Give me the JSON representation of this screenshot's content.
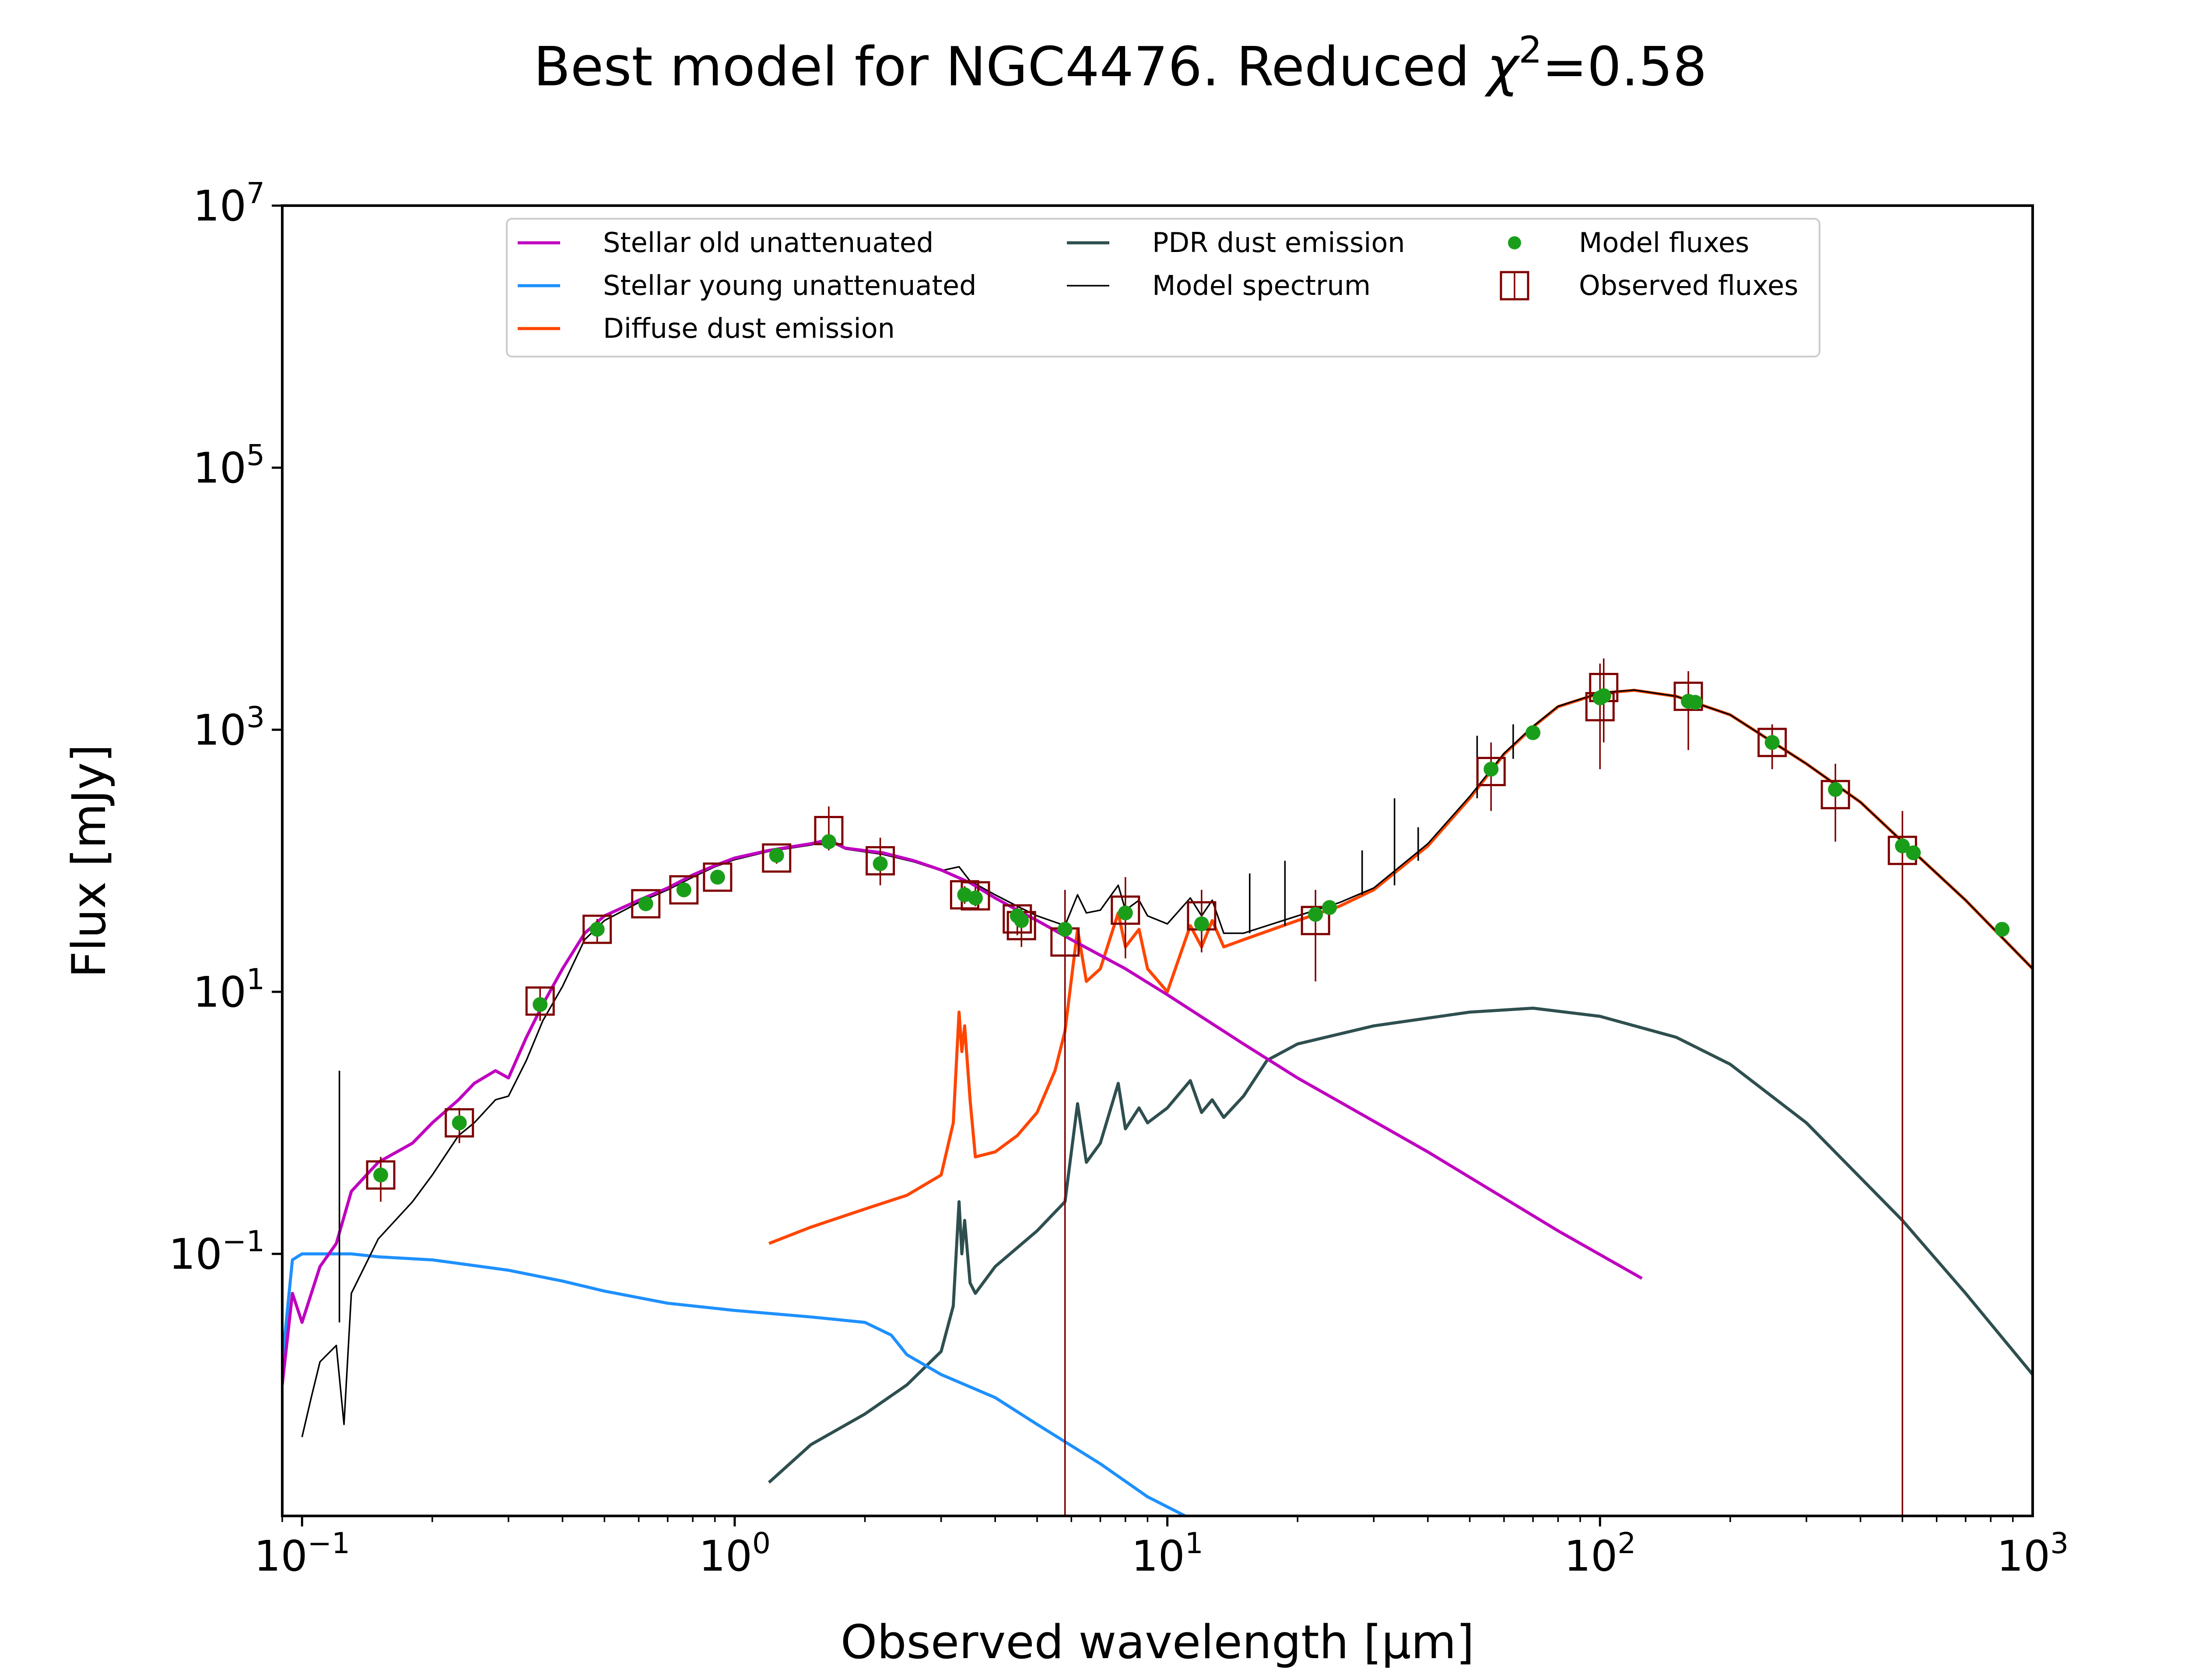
{
  "colors": {
    "stellar_old": "#bf00bf",
    "stellar_young": "#1e90ff",
    "diffuse_dust": "#ff4500",
    "pdr_dust": "#2f4f4f",
    "model_spectrum": "#000000",
    "model_fluxes": "#1a9e1a",
    "observed_fluxes": "#7f0000"
  },
  "chart_data": {
    "type": "line",
    "title_main": "Best model for NGC4476. Reduced ",
    "title_chi": "χ",
    "title_sup": "2",
    "title_tail": "=0.58",
    "xlabel": "Observed wavelength [μm]",
    "ylabel": "Flux [mJy]",
    "xscale": "log",
    "yscale": "log",
    "xlim": [
      0.09,
      1000
    ],
    "ylim": [
      0.001,
      10000000
    ],
    "grid": false,
    "legend_placement": "upper-center",
    "x_ticks": [
      {
        "value": 0.1,
        "base": "10",
        "exp": "−1"
      },
      {
        "value": 1,
        "base": "10",
        "exp": "0"
      },
      {
        "value": 10,
        "base": "10",
        "exp": "1"
      },
      {
        "value": 100,
        "base": "10",
        "exp": "2"
      },
      {
        "value": 1000,
        "base": "10",
        "exp": "3"
      }
    ],
    "y_ticks": [
      {
        "value": 0.1,
        "base": "10",
        "exp": "−1"
      },
      {
        "value": 10,
        "base": "10",
        "exp": "1"
      },
      {
        "value": 1000,
        "base": "10",
        "exp": "3"
      },
      {
        "value": 100000,
        "base": "10",
        "exp": "5"
      },
      {
        "value": 10000000,
        "base": "10",
        "exp": "7"
      }
    ],
    "series": [
      {
        "name": "Stellar old unattenuated",
        "key": "stellar_old",
        "points": [
          [
            0.09,
            0.01
          ],
          [
            0.095,
            0.05
          ],
          [
            0.1,
            0.03
          ],
          [
            0.11,
            0.08
          ],
          [
            0.12,
            0.12
          ],
          [
            0.13,
            0.3
          ],
          [
            0.15,
            0.5
          ],
          [
            0.18,
            0.7
          ],
          [
            0.2,
            1.0
          ],
          [
            0.23,
            1.5
          ],
          [
            0.25,
            2.0
          ],
          [
            0.28,
            2.5
          ],
          [
            0.3,
            2.2
          ],
          [
            0.33,
            4.5
          ],
          [
            0.36,
            8
          ],
          [
            0.4,
            15
          ],
          [
            0.45,
            28
          ],
          [
            0.5,
            38
          ],
          [
            0.6,
            50
          ],
          [
            0.7,
            62
          ],
          [
            0.8,
            78
          ],
          [
            0.9,
            92
          ],
          [
            1.0,
            105
          ],
          [
            1.2,
            120
          ],
          [
            1.5,
            135
          ],
          [
            1.65,
            145
          ],
          [
            1.8,
            125
          ],
          [
            2.2,
            115
          ],
          [
            2.6,
            100
          ],
          [
            3.0,
            85
          ],
          [
            3.5,
            68
          ],
          [
            4.0,
            52
          ],
          [
            4.5,
            42
          ],
          [
            5.0,
            35
          ],
          [
            6.0,
            25
          ],
          [
            8.0,
            15
          ],
          [
            10.0,
            9.5
          ],
          [
            15.0,
            4.0
          ],
          [
            20.0,
            2.2
          ],
          [
            40.0,
            0.6
          ],
          [
            80.0,
            0.15
          ],
          [
            125.0,
            0.065
          ]
        ]
      },
      {
        "name": "Stellar young unattenuated",
        "key": "stellar_young",
        "points": [
          [
            0.09,
            0.015
          ],
          [
            0.095,
            0.09
          ],
          [
            0.1,
            0.1
          ],
          [
            0.11,
            0.1
          ],
          [
            0.12,
            0.1
          ],
          [
            0.13,
            0.1
          ],
          [
            0.15,
            0.095
          ],
          [
            0.2,
            0.09
          ],
          [
            0.3,
            0.075
          ],
          [
            0.4,
            0.062
          ],
          [
            0.5,
            0.052
          ],
          [
            0.7,
            0.042
          ],
          [
            1.0,
            0.037
          ],
          [
            1.5,
            0.033
          ],
          [
            2.0,
            0.03
          ],
          [
            2.3,
            0.024
          ],
          [
            2.5,
            0.017
          ],
          [
            3.0,
            0.012
          ],
          [
            4.0,
            0.008
          ],
          [
            5.0,
            0.005
          ],
          [
            7.0,
            0.0025
          ],
          [
            9.0,
            0.0014
          ],
          [
            11.0,
            0.001
          ]
        ]
      },
      {
        "name": "Diffuse dust emission",
        "key": "diffuse_dust",
        "points": [
          [
            1.2,
            0.12
          ],
          [
            1.5,
            0.16
          ],
          [
            2.0,
            0.22
          ],
          [
            2.5,
            0.28
          ],
          [
            3.0,
            0.4
          ],
          [
            3.2,
            1.0
          ],
          [
            3.3,
            7.0
          ],
          [
            3.35,
            3.5
          ],
          [
            3.4,
            5.5
          ],
          [
            3.5,
            1.5
          ],
          [
            3.6,
            0.55
          ],
          [
            4.0,
            0.6
          ],
          [
            4.5,
            0.8
          ],
          [
            5.0,
            1.2
          ],
          [
            5.5,
            2.5
          ],
          [
            5.8,
            5.0
          ],
          [
            6.2,
            30.0
          ],
          [
            6.5,
            12.0
          ],
          [
            7.0,
            15.0
          ],
          [
            7.7,
            40.0
          ],
          [
            8.0,
            22.0
          ],
          [
            8.6,
            30.0
          ],
          [
            9.0,
            15.0
          ],
          [
            10.0,
            10.0
          ],
          [
            11.3,
            32.0
          ],
          [
            12.0,
            22.0
          ],
          [
            12.7,
            35.0
          ],
          [
            13.5,
            22.0
          ],
          [
            15.0,
            25.0
          ],
          [
            20.0,
            35.0
          ],
          [
            25.0,
            45.0
          ],
          [
            30.0,
            60.0
          ],
          [
            40.0,
            130.0
          ],
          [
            50.0,
            300.0
          ],
          [
            60.0,
            650.0
          ],
          [
            70.0,
            1050.0
          ],
          [
            80.0,
            1500.0
          ],
          [
            100.0,
            1900.0
          ],
          [
            120.0,
            2000.0
          ],
          [
            150.0,
            1800.0
          ],
          [
            200.0,
            1300.0
          ],
          [
            300.0,
            550.0
          ],
          [
            400.0,
            280.0
          ],
          [
            500.0,
            140.0
          ],
          [
            700.0,
            50.0
          ],
          [
            1000.0,
            15.0
          ]
        ]
      },
      {
        "name": "PDR dust emission",
        "key": "pdr_dust",
        "points": [
          [
            1.2,
            0.0018
          ],
          [
            1.5,
            0.0035
          ],
          [
            2.0,
            0.006
          ],
          [
            2.5,
            0.01
          ],
          [
            3.0,
            0.018
          ],
          [
            3.2,
            0.04
          ],
          [
            3.3,
            0.25
          ],
          [
            3.35,
            0.1
          ],
          [
            3.4,
            0.18
          ],
          [
            3.5,
            0.06
          ],
          [
            3.6,
            0.05
          ],
          [
            4.0,
            0.08
          ],
          [
            5.0,
            0.15
          ],
          [
            5.8,
            0.25
          ],
          [
            6.2,
            1.4
          ],
          [
            6.5,
            0.5
          ],
          [
            7.0,
            0.7
          ],
          [
            7.7,
            2.0
          ],
          [
            8.0,
            0.9
          ],
          [
            8.6,
            1.3
          ],
          [
            9.0,
            1.0
          ],
          [
            10.0,
            1.3
          ],
          [
            11.3,
            2.1
          ],
          [
            12.0,
            1.2
          ],
          [
            12.7,
            1.5
          ],
          [
            13.5,
            1.1
          ],
          [
            15.0,
            1.6
          ],
          [
            17.0,
            3.0
          ],
          [
            20.0,
            4.0
          ],
          [
            30.0,
            5.5
          ],
          [
            50.0,
            7.0
          ],
          [
            70.0,
            7.5
          ],
          [
            100.0,
            6.5
          ],
          [
            150.0,
            4.5
          ],
          [
            200.0,
            2.8
          ],
          [
            300.0,
            1.0
          ],
          [
            500.0,
            0.18
          ],
          [
            700.0,
            0.05
          ],
          [
            1000.0,
            0.012
          ]
        ]
      },
      {
        "name": "Model spectrum",
        "key": "model_spectrum",
        "points": [
          [
            0.1,
            0.004
          ],
          [
            0.105,
            0.008
          ],
          [
            0.11,
            0.015
          ],
          [
            0.12,
            0.02
          ],
          [
            0.125,
            0.005
          ],
          [
            0.13,
            0.05
          ],
          [
            0.15,
            0.13
          ],
          [
            0.18,
            0.25
          ],
          [
            0.2,
            0.4
          ],
          [
            0.23,
            0.8
          ],
          [
            0.25,
            1.0
          ],
          [
            0.28,
            1.5
          ],
          [
            0.3,
            1.6
          ],
          [
            0.33,
            3.0
          ],
          [
            0.36,
            6.0
          ],
          [
            0.4,
            11.0
          ],
          [
            0.45,
            25.0
          ],
          [
            0.5,
            35.0
          ],
          [
            0.6,
            48.0
          ],
          [
            0.7,
            60.0
          ],
          [
            0.8,
            75.0
          ],
          [
            0.9,
            90.0
          ],
          [
            1.0,
            102.0
          ],
          [
            1.2,
            118.0
          ],
          [
            1.5,
            132.0
          ],
          [
            1.65,
            142.0
          ],
          [
            1.8,
            123.0
          ],
          [
            2.2,
            112.0
          ],
          [
            2.6,
            98.0
          ],
          [
            3.0,
            84.0
          ],
          [
            3.3,
            90.0
          ],
          [
            3.5,
            70.0
          ],
          [
            4.0,
            55.0
          ],
          [
            4.5,
            45.0
          ],
          [
            5.0,
            38.0
          ],
          [
            5.8,
            32.0
          ],
          [
            6.2,
            55.0
          ],
          [
            6.5,
            40.0
          ],
          [
            7.0,
            42.0
          ],
          [
            7.7,
            65.0
          ],
          [
            8.0,
            42.0
          ],
          [
            8.6,
            50.0
          ],
          [
            9.0,
            38.0
          ],
          [
            10.0,
            33.0
          ],
          [
            11.3,
            52.0
          ],
          [
            12.0,
            38.0
          ],
          [
            12.7,
            50.0
          ],
          [
            13.5,
            28.0
          ],
          [
            15.0,
            28.0
          ],
          [
            20.0,
            38.0
          ],
          [
            25.0,
            48.0
          ],
          [
            30.0,
            62.0
          ],
          [
            40.0,
            135.0
          ],
          [
            50.0,
            310.0
          ],
          [
            60.0,
            660.0
          ],
          [
            70.0,
            1060.0
          ],
          [
            80.0,
            1510.0
          ],
          [
            100.0,
            1910.0
          ],
          [
            120.0,
            2010.0
          ],
          [
            150.0,
            1800.0
          ],
          [
            200.0,
            1300.0
          ],
          [
            300.0,
            550.0
          ],
          [
            400.0,
            280.0
          ],
          [
            500.0,
            140.0
          ],
          [
            700.0,
            50.0
          ],
          [
            1000.0,
            15.0
          ]
        ]
      }
    ],
    "model_spectrum_lines": [
      {
        "x": 0.122,
        "y_low": 0.03,
        "y_high": 2.5
      },
      {
        "x": 15.5,
        "y_low": 28,
        "y_high": 80
      },
      {
        "x": 18.7,
        "y_low": 32,
        "y_high": 100
      },
      {
        "x": 28.2,
        "y_low": 55,
        "y_high": 120
      },
      {
        "x": 33.5,
        "y_low": 65,
        "y_high": 300
      },
      {
        "x": 38.0,
        "y_low": 100,
        "y_high": 180
      },
      {
        "x": 52.0,
        "y_low": 300,
        "y_high": 900
      },
      {
        "x": 63.0,
        "y_low": 600,
        "y_high": 1100
      }
    ],
    "model_fluxes": {
      "name": "Model fluxes",
      "points": [
        [
          0.152,
          0.4
        ],
        [
          0.231,
          1.0
        ],
        [
          0.355,
          8.0
        ],
        [
          0.481,
          30.0
        ],
        [
          0.623,
          47.0
        ],
        [
          0.763,
          60.0
        ],
        [
          0.913,
          75.0
        ],
        [
          1.25,
          110.0
        ],
        [
          1.65,
          140.0
        ],
        [
          2.17,
          95.0
        ],
        [
          3.4,
          55.0
        ],
        [
          3.6,
          52.0
        ],
        [
          4.5,
          38.0
        ],
        [
          4.6,
          35.0
        ],
        [
          5.8,
          30.0
        ],
        [
          8.0,
          40.0
        ],
        [
          12.0,
          33.0
        ],
        [
          22.0,
          39.0
        ],
        [
          23.7,
          44.0
        ],
        [
          56.0,
          500.0
        ],
        [
          70.0,
          950.0
        ],
        [
          100.0,
          1750.0
        ],
        [
          102.0,
          1820.0
        ],
        [
          160.0,
          1650.0
        ],
        [
          166.0,
          1620.0
        ],
        [
          250.0,
          800.0
        ],
        [
          350.0,
          350.0
        ],
        [
          500.0,
          130.0
        ],
        [
          530.0,
          115.0
        ],
        [
          850.0,
          30.0
        ]
      ]
    },
    "observed_fluxes": {
      "name": "Observed fluxes",
      "points": [
        [
          0.152,
          0.4,
          0.25,
          0.55
        ],
        [
          0.231,
          1.0,
          0.7,
          1.3
        ],
        [
          0.355,
          8.5,
          6.0,
          11.0
        ],
        [
          0.481,
          30.0,
          24.0,
          36.0
        ],
        [
          0.623,
          47.0,
          42.0,
          52.0
        ],
        [
          0.763,
          60.0,
          54.0,
          66.0
        ],
        [
          0.913,
          75.0,
          68.0,
          82.0
        ],
        [
          1.25,
          105.0,
          95.0,
          115.0
        ],
        [
          1.65,
          170.0,
          120.0,
          260.0
        ],
        [
          2.17,
          100.0,
          65.0,
          150.0
        ],
        [
          3.4,
          55.0,
          47.0,
          64.0
        ],
        [
          3.6,
          54.0,
          45.0,
          63.0
        ],
        [
          4.5,
          36.0,
          27.0,
          46.0
        ],
        [
          4.6,
          32.0,
          22.0,
          44.0
        ],
        [
          5.8,
          24.0,
          0.001,
          60.0
        ],
        [
          8.0,
          42.0,
          18.0,
          75.0
        ],
        [
          12.0,
          38.0,
          20.0,
          60.0
        ],
        [
          22.0,
          35.0,
          12.0,
          60.0
        ],
        [
          56.0,
          480.0,
          240.0,
          800.0
        ],
        [
          100.0,
          1500.0,
          500.0,
          3200.0
        ],
        [
          102.0,
          2100.0,
          800.0,
          3500.0
        ],
        [
          160.0,
          1800.0,
          700.0,
          2800.0
        ],
        [
          250.0,
          800.0,
          500.0,
          1100.0
        ],
        [
          350.0,
          320.0,
          140.0,
          550.0
        ],
        [
          500.0,
          120.0,
          0.001,
          240.0
        ]
      ]
    }
  }
}
